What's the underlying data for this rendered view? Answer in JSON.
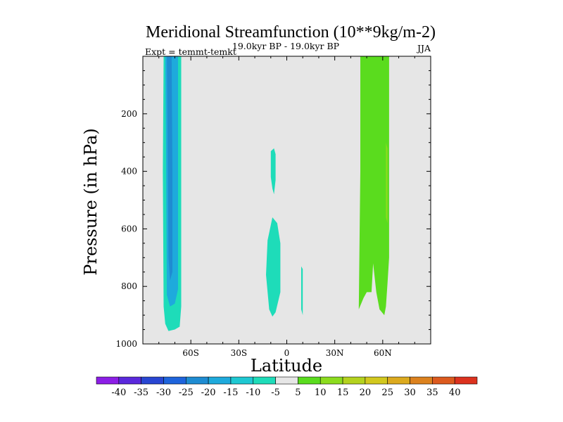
{
  "chart_data": {
    "type": "contour",
    "title": "Meridional Streamfunction (10**9kg/m-2)",
    "left_string": "Expt = temmt-temkt",
    "center_string": "19.0kyr BP - 19.0kyr BP",
    "right_string": "JJA",
    "xlabel": "Latitude",
    "ylabel": "Pressure (in hPa)",
    "xlim": [
      -90,
      90
    ],
    "ylim": [
      1000,
      0
    ],
    "x_ticks": [
      {
        "value": -60,
        "label": "60S"
      },
      {
        "value": -30,
        "label": "30S"
      },
      {
        "value": 0,
        "label": "0"
      },
      {
        "value": 30,
        "label": "30N"
      },
      {
        "value": 60,
        "label": "60N"
      }
    ],
    "y_ticks": [
      {
        "value": 200,
        "label": "200"
      },
      {
        "value": 400,
        "label": "400"
      },
      {
        "value": 600,
        "label": "600"
      },
      {
        "value": 800,
        "label": "800"
      },
      {
        "value": 1000,
        "label": "1000"
      }
    ],
    "background_color": "#e6e6e6",
    "colorbar": {
      "levels": [
        -40,
        -35,
        -30,
        -25,
        -20,
        -15,
        -10,
        -5,
        5,
        10,
        15,
        20,
        25,
        30,
        35,
        40
      ],
      "labels": [
        "-40",
        "-35",
        "-30",
        "-25",
        "-20",
        "-15",
        "-10",
        "-5",
        "5",
        "10",
        "15",
        "20",
        "25",
        "30",
        "35",
        "40"
      ],
      "colors": [
        "#8c1ee6",
        "#5a28dc",
        "#2846d2",
        "#1e64dc",
        "#1e8cd2",
        "#1eaadc",
        "#1ec8d2",
        "#1edcb9",
        "#e6e6e6",
        "#5adc1e",
        "#8cdc1e",
        "#b4d21e",
        "#d2c81e",
        "#dcaa1e",
        "#dc821e",
        "#dc5a1e",
        "#dc321e"
      ]
    },
    "regions": [
      {
        "name": "sh-polar-cell-outer",
        "color": "#1edcb9",
        "level_range": [
          -10,
          -5
        ],
        "polygon": [
          [
            -77,
            0
          ],
          [
            -66,
            0
          ],
          [
            -66,
            870
          ],
          [
            -67,
            940
          ],
          [
            -70,
            950
          ],
          [
            -74,
            955
          ],
          [
            -76,
            930
          ],
          [
            -77,
            870
          ],
          [
            -77.5,
            400
          ]
        ]
      },
      {
        "name": "sh-polar-cell-mid",
        "color": "#1eaadc",
        "level_range": [
          -15,
          -10
        ],
        "polygon": [
          [
            -76,
            0
          ],
          [
            -68,
            0
          ],
          [
            -68,
            810
          ],
          [
            -70,
            860
          ],
          [
            -73,
            870
          ],
          [
            -75,
            830
          ],
          [
            -75.5,
            300
          ]
        ]
      },
      {
        "name": "sh-polar-cell-core",
        "color": "#1e8cd2",
        "level_range": [
          -20,
          -15
        ],
        "polygon": [
          [
            -75,
            0
          ],
          [
            -72,
            0
          ],
          [
            -71.5,
            400
          ],
          [
            -71.5,
            750
          ],
          [
            -73,
            780
          ],
          [
            -74,
            700
          ],
          [
            -74.5,
            300
          ]
        ]
      },
      {
        "name": "upper-tropical-patch",
        "color": "#1edcb9",
        "level_range": [
          -10,
          -5
        ],
        "polygon": [
          [
            -10,
            330
          ],
          [
            -8,
            320
          ],
          [
            -7,
            340
          ],
          [
            -7,
            430
          ],
          [
            -8,
            480
          ],
          [
            -9,
            460
          ],
          [
            -10,
            420
          ]
        ]
      },
      {
        "name": "lower-tropical-patch",
        "color": "#1edcb9",
        "level_range": [
          -10,
          -5
        ],
        "polygon": [
          [
            -9,
            560
          ],
          [
            -6,
            580
          ],
          [
            -4,
            650
          ],
          [
            -4,
            820
          ],
          [
            -7,
            890
          ],
          [
            -9,
            905
          ],
          [
            -11,
            880
          ],
          [
            -13,
            760
          ],
          [
            -12,
            640
          ]
        ]
      },
      {
        "name": "equatorial-sliver",
        "color": "#1edcb9",
        "level_range": [
          -10,
          -5
        ],
        "polygon": [
          [
            9,
            730
          ],
          [
            10,
            740
          ],
          [
            10,
            900
          ],
          [
            9,
            880
          ]
        ]
      },
      {
        "name": "nh-mid-latitude-cell",
        "color": "#5adc1e",
        "level_range": [
          5,
          10
        ],
        "polygon": [
          [
            46,
            0
          ],
          [
            64,
            0
          ],
          [
            64,
            700
          ],
          [
            63,
            790
          ],
          [
            62,
            870
          ],
          [
            61,
            900
          ],
          [
            58,
            880
          ],
          [
            56,
            820
          ],
          [
            54,
            720
          ],
          [
            53,
            820
          ],
          [
            50,
            820
          ],
          [
            48,
            840
          ],
          [
            45,
            880
          ],
          [
            46,
            400
          ]
        ]
      },
      {
        "name": "nh-core-sliver",
        "color": "#8cdc1e",
        "level_range": [
          10,
          15
        ],
        "polygon": [
          [
            62,
            300
          ],
          [
            63,
            320
          ],
          [
            63,
            580
          ],
          [
            62,
            560
          ]
        ]
      }
    ]
  }
}
